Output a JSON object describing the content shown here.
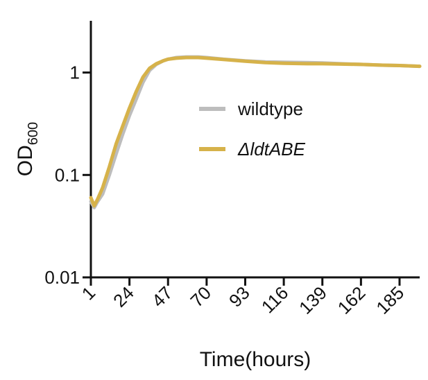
{
  "chart_data": {
    "type": "line",
    "xlabel": "Time(hours)",
    "ylabel": "OD",
    "ylabel_subscript": "600",
    "y_scale": "log",
    "xlim": [
      1,
      197
    ],
    "ylim": [
      0.01,
      3.2
    ],
    "xticks": [
      1,
      24,
      47,
      70,
      93,
      116,
      139,
      162,
      185
    ],
    "yticks": [
      0.01,
      0.1,
      1
    ],
    "legend": "center-right",
    "x": [
      1,
      3,
      5,
      8,
      12,
      16,
      20,
      24,
      28,
      32,
      36,
      40,
      44,
      47,
      52,
      58,
      65,
      70,
      80,
      93,
      105,
      116,
      130,
      139,
      150,
      162,
      175,
      185,
      197
    ],
    "series": [
      {
        "name": "wildtype",
        "color": "#bdbdbd",
        "values": [
          0.055,
          0.048,
          0.055,
          0.065,
          0.1,
          0.16,
          0.25,
          0.38,
          0.55,
          0.8,
          1.05,
          1.2,
          1.3,
          1.35,
          1.4,
          1.42,
          1.42,
          1.4,
          1.35,
          1.3,
          1.27,
          1.26,
          1.25,
          1.24,
          1.22,
          1.2,
          1.18,
          1.17,
          1.15
        ]
      },
      {
        "name": "ΔldtABE",
        "color": "#d6b24a",
        "values": [
          0.06,
          0.05,
          0.058,
          0.075,
          0.12,
          0.2,
          0.3,
          0.45,
          0.65,
          0.9,
          1.1,
          1.22,
          1.3,
          1.35,
          1.38,
          1.4,
          1.4,
          1.38,
          1.34,
          1.29,
          1.25,
          1.23,
          1.22,
          1.22,
          1.21,
          1.2,
          1.18,
          1.17,
          1.15
        ]
      }
    ]
  }
}
